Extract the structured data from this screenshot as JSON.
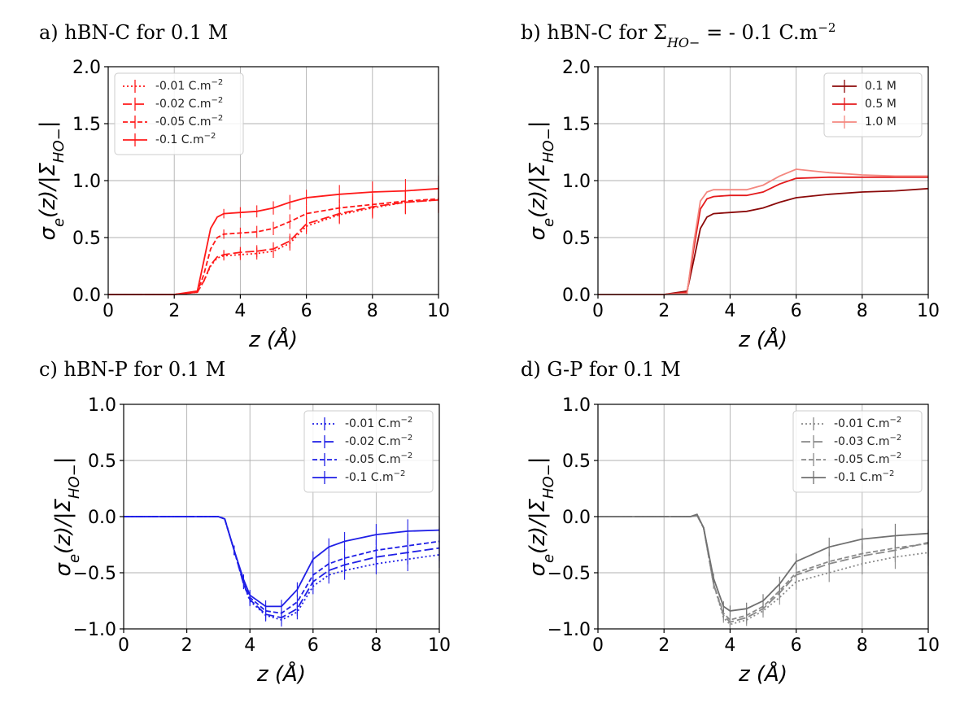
{
  "chart_data": [
    {
      "id": "a",
      "type": "line",
      "title": "a) hBN-C for 0.1 M",
      "xlabel": "z (Å)",
      "ylabel": "σe(z)/|ΣHO−|",
      "xlim": [
        0,
        10
      ],
      "ylim": [
        0,
        2
      ],
      "xticks": [
        "0",
        "2",
        "4",
        "6",
        "8",
        "10"
      ],
      "yticks": [
        "0.0",
        "0.5",
        "1.0",
        "1.5",
        "2.0"
      ],
      "grid": true,
      "legend_position": "top-left",
      "series": [
        {
          "name": "-0.01 C.m⁻²",
          "color": "#ff1a1a",
          "dash": "dotted",
          "errorbars": true,
          "x": [
            0,
            1,
            2,
            2.7,
            2.9,
            3.1,
            3.3,
            3.5,
            4,
            4.5,
            5,
            5.5,
            6,
            7,
            8,
            9,
            10
          ],
          "y": [
            0,
            0,
            0,
            0.02,
            0.12,
            0.25,
            0.32,
            0.34,
            0.35,
            0.36,
            0.38,
            0.45,
            0.6,
            0.7,
            0.76,
            0.81,
            0.83
          ]
        },
        {
          "name": "-0.02 C.m⁻²",
          "color": "#ff1a1a",
          "dash": "dashed-long",
          "errorbars": true,
          "x": [
            0,
            1,
            2,
            2.7,
            2.9,
            3.1,
            3.3,
            3.5,
            4,
            4.5,
            5,
            5.5,
            6,
            7,
            8,
            9,
            10
          ],
          "y": [
            0,
            0,
            0,
            0.02,
            0.12,
            0.26,
            0.33,
            0.35,
            0.37,
            0.38,
            0.4,
            0.47,
            0.62,
            0.71,
            0.77,
            0.81,
            0.83
          ]
        },
        {
          "name": "-0.05 C.m⁻²",
          "color": "#ff1a1a",
          "dash": "dashed",
          "errorbars": true,
          "x": [
            0,
            1,
            2,
            2.7,
            2.9,
            3.1,
            3.3,
            3.5,
            4,
            4.5,
            5,
            5.5,
            6,
            7,
            8,
            9,
            10
          ],
          "y": [
            0,
            0,
            0,
            0.02,
            0.18,
            0.4,
            0.5,
            0.53,
            0.54,
            0.55,
            0.58,
            0.64,
            0.71,
            0.76,
            0.79,
            0.82,
            0.84
          ]
        },
        {
          "name": "-0.1 C.m⁻²",
          "color": "#ff1a1a",
          "dash": "solid",
          "errorbars": true,
          "x": [
            0,
            1,
            2,
            2.7,
            2.9,
            3.1,
            3.3,
            3.5,
            4,
            4.5,
            5,
            5.5,
            6,
            7,
            8,
            9,
            10
          ],
          "y": [
            0,
            0,
            0,
            0.03,
            0.3,
            0.58,
            0.68,
            0.71,
            0.72,
            0.73,
            0.76,
            0.81,
            0.85,
            0.88,
            0.9,
            0.91,
            0.93
          ]
        }
      ]
    },
    {
      "id": "b",
      "type": "line",
      "title": "b) hBN-C for ΣHO− = - 0.1 C.m⁻²",
      "xlabel": "z (Å)",
      "ylabel": "σe(z)/|ΣHO−|",
      "xlim": [
        0,
        10
      ],
      "ylim": [
        0,
        2
      ],
      "xticks": [
        "0",
        "2",
        "4",
        "6",
        "8",
        "10"
      ],
      "yticks": [
        "0.0",
        "0.5",
        "1.0",
        "1.5",
        "2.0"
      ],
      "grid": true,
      "legend_position": "top-right",
      "series": [
        {
          "name": "0.1 M",
          "color": "#8b0a0a",
          "dash": "solid",
          "errorbars": false,
          "x": [
            0,
            1,
            2,
            2.7,
            2.9,
            3.1,
            3.3,
            3.5,
            4,
            4.5,
            5,
            5.5,
            6,
            7,
            8,
            9,
            10
          ],
          "y": [
            0,
            0,
            0,
            0.03,
            0.3,
            0.58,
            0.68,
            0.71,
            0.72,
            0.73,
            0.76,
            0.81,
            0.85,
            0.88,
            0.9,
            0.91,
            0.93
          ]
        },
        {
          "name": "0.5 M",
          "color": "#e41a1c",
          "dash": "solid",
          "errorbars": false,
          "x": [
            0,
            1,
            2,
            2.7,
            2.9,
            3.1,
            3.3,
            3.5,
            4,
            4.5,
            5,
            5.5,
            6,
            7,
            8,
            9,
            10
          ],
          "y": [
            0,
            0,
            0,
            0.02,
            0.4,
            0.75,
            0.84,
            0.86,
            0.87,
            0.87,
            0.9,
            0.97,
            1.02,
            1.03,
            1.03,
            1.03,
            1.03
          ]
        },
        {
          "name": "1.0 M",
          "color": "#f4877f",
          "dash": "solid",
          "errorbars": false,
          "x": [
            0,
            1,
            2,
            2.7,
            2.9,
            3.1,
            3.3,
            3.5,
            4,
            4.5,
            5,
            5.5,
            6,
            7,
            8,
            9,
            10
          ],
          "y": [
            0,
            0,
            0,
            0.01,
            0.45,
            0.82,
            0.9,
            0.92,
            0.92,
            0.92,
            0.96,
            1.04,
            1.1,
            1.07,
            1.05,
            1.04,
            1.04
          ]
        }
      ]
    },
    {
      "id": "c",
      "type": "line",
      "title": "c) hBN-P for 0.1 M",
      "xlabel": "z (Å)",
      "ylabel": "σe(z)/|ΣHO−|",
      "xlim": [
        0,
        10
      ],
      "ylim": [
        -1,
        1
      ],
      "xticks": [
        "0",
        "2",
        "4",
        "6",
        "8",
        "10"
      ],
      "yticks": [
        "−1.0",
        "−0.5",
        "0.0",
        "0.5",
        "1.0"
      ],
      "grid": true,
      "legend_position": "top-right",
      "series": [
        {
          "name": "-0.01 C.m⁻²",
          "color": "#1f1fe6",
          "dash": "dotted",
          "errorbars": true,
          "x": [
            0,
            1,
            2,
            3,
            3.2,
            3.5,
            3.8,
            4,
            4.5,
            5,
            5.5,
            6,
            6.5,
            7,
            8,
            9,
            10
          ],
          "y": [
            0,
            0,
            0,
            0,
            -0.02,
            -0.3,
            -0.6,
            -0.75,
            -0.88,
            -0.92,
            -0.85,
            -0.62,
            -0.52,
            -0.48,
            -0.42,
            -0.38,
            -0.34
          ]
        },
        {
          "name": "-0.02 C.m⁻²",
          "color": "#1f1fe6",
          "dash": "dashed-long",
          "errorbars": true,
          "x": [
            0,
            1,
            2,
            3,
            3.2,
            3.5,
            3.8,
            4,
            4.5,
            5,
            5.5,
            6,
            6.5,
            7,
            8,
            9,
            10
          ],
          "y": [
            0,
            0,
            0,
            0,
            -0.02,
            -0.3,
            -0.6,
            -0.74,
            -0.87,
            -0.9,
            -0.82,
            -0.58,
            -0.48,
            -0.43,
            -0.36,
            -0.32,
            -0.28
          ]
        },
        {
          "name": "-0.05 C.m⁻²",
          "color": "#1f1fe6",
          "dash": "dashed",
          "errorbars": true,
          "x": [
            0,
            1,
            2,
            3,
            3.2,
            3.5,
            3.8,
            4,
            4.5,
            5,
            5.5,
            6,
            6.5,
            7,
            8,
            9,
            10
          ],
          "y": [
            0,
            0,
            0,
            0,
            -0.02,
            -0.3,
            -0.58,
            -0.72,
            -0.84,
            -0.86,
            -0.76,
            -0.52,
            -0.42,
            -0.37,
            -0.3,
            -0.26,
            -0.22
          ]
        },
        {
          "name": "-0.1 C.m⁻²",
          "color": "#1f1fe6",
          "dash": "solid",
          "errorbars": true,
          "x": [
            0,
            1,
            2,
            3,
            3.2,
            3.5,
            3.8,
            4,
            4.5,
            5,
            5.5,
            6,
            6.5,
            7,
            8,
            9,
            10
          ],
          "y": [
            0,
            0,
            0,
            0,
            -0.02,
            -0.3,
            -0.56,
            -0.7,
            -0.8,
            -0.8,
            -0.65,
            -0.38,
            -0.27,
            -0.22,
            -0.16,
            -0.13,
            -0.12
          ]
        }
      ]
    },
    {
      "id": "d",
      "type": "line",
      "title": "d) G-P for 0.1 M",
      "xlabel": "z (Å)",
      "ylabel": "σe(z)/|ΣHO−|",
      "xlim": [
        0,
        10
      ],
      "ylim": [
        -1,
        1
      ],
      "xticks": [
        "0",
        "2",
        "4",
        "6",
        "8",
        "10"
      ],
      "yticks": [
        "−1.0",
        "−0.5",
        "0.0",
        "0.5",
        "1.0"
      ],
      "grid": true,
      "legend_position": "top-right",
      "series": [
        {
          "name": "-0.01 C.m⁻²",
          "color": "#8a8a8a",
          "dash": "dotted",
          "errorbars": true,
          "x": [
            0,
            1,
            2,
            2.8,
            3,
            3.2,
            3.5,
            3.8,
            4,
            4.5,
            5,
            5.5,
            6,
            7,
            8,
            9,
            10
          ],
          "y": [
            0,
            0,
            0,
            0,
            0.01,
            -0.1,
            -0.6,
            -0.9,
            -0.96,
            -0.92,
            -0.84,
            -0.72,
            -0.58,
            -0.5,
            -0.42,
            -0.36,
            -0.32
          ]
        },
        {
          "name": "-0.03 C.m⁻²",
          "color": "#8a8a8a",
          "dash": "dashed-long",
          "errorbars": true,
          "x": [
            0,
            1,
            2,
            2.8,
            3,
            3.2,
            3.5,
            3.8,
            4,
            4.5,
            5,
            5.5,
            6,
            7,
            8,
            9,
            10
          ],
          "y": [
            0,
            0,
            0,
            0,
            0.01,
            -0.1,
            -0.6,
            -0.88,
            -0.94,
            -0.9,
            -0.82,
            -0.68,
            -0.52,
            -0.42,
            -0.35,
            -0.3,
            -0.23
          ]
        },
        {
          "name": "-0.05 C.m⁻²",
          "color": "#8a8a8a",
          "dash": "dashed",
          "errorbars": true,
          "x": [
            0,
            1,
            2,
            2.8,
            3,
            3.2,
            3.5,
            3.8,
            4,
            4.5,
            5,
            5.5,
            6,
            7,
            8,
            9,
            10
          ],
          "y": [
            0,
            0,
            0,
            0,
            0.01,
            -0.1,
            -0.6,
            -0.86,
            -0.92,
            -0.88,
            -0.8,
            -0.66,
            -0.5,
            -0.4,
            -0.33,
            -0.28,
            -0.24
          ]
        },
        {
          "name": "-0.1 C.m⁻²",
          "color": "#707070",
          "dash": "solid",
          "errorbars": true,
          "x": [
            0,
            1,
            2,
            2.8,
            3,
            3.2,
            3.5,
            3.8,
            4,
            4.5,
            5,
            5.5,
            6,
            7,
            8,
            9,
            10
          ],
          "y": [
            0,
            0,
            0,
            0,
            0.02,
            -0.1,
            -0.55,
            -0.8,
            -0.84,
            -0.82,
            -0.75,
            -0.6,
            -0.4,
            -0.27,
            -0.2,
            -0.17,
            -0.15
          ]
        }
      ]
    }
  ]
}
